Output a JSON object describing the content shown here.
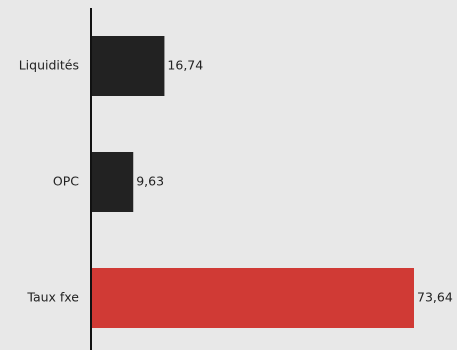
{
  "chart_data": {
    "type": "bar",
    "orientation": "horizontal",
    "categories": [
      "Liquidités",
      "OPC",
      "Taux fxe"
    ],
    "values": [
      16.74,
      9.63,
      73.64
    ],
    "value_labels": [
      "16,74",
      "9,63",
      "73,64"
    ],
    "xlim": [
      0,
      73.64
    ],
    "grid": false,
    "legend": "none",
    "colors": [
      "#222222",
      "#222222",
      "#d03a35"
    ]
  }
}
